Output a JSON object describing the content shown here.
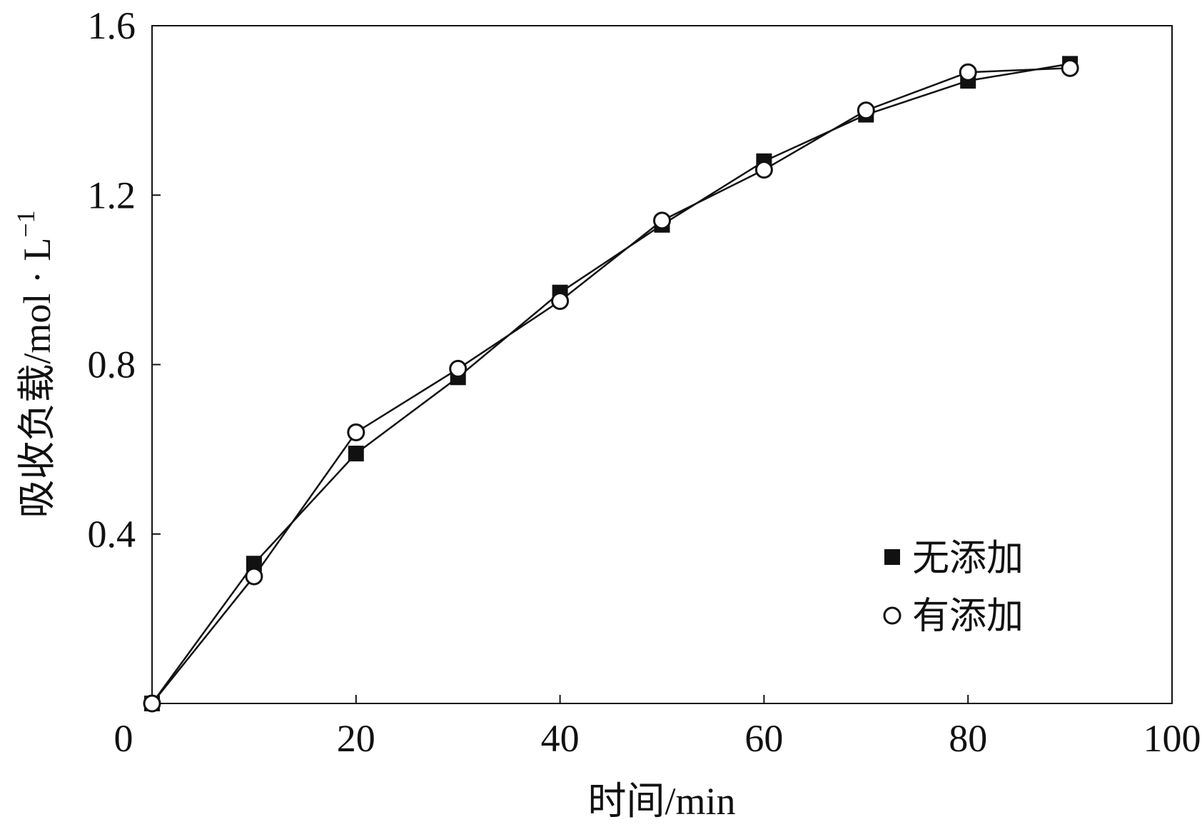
{
  "chart_data": {
    "type": "line",
    "title": "",
    "xlabel": "时间/min",
    "ylabel": "吸收负载/mol · L",
    "ylabel_sup": "−1",
    "xlim": [
      0,
      100
    ],
    "ylim": [
      0,
      1.6
    ],
    "xticks": [
      0,
      20,
      40,
      60,
      80,
      100
    ],
    "xtick_labels": [
      "0",
      "20",
      "40",
      "60",
      "80",
      "100"
    ],
    "yticks": [
      0.4,
      0.8,
      1.2,
      1.6
    ],
    "ytick_labels": [
      "0.4",
      "0.8",
      "1.2",
      "1.6"
    ],
    "grid": false,
    "legend_position": "bottom-right",
    "series": [
      {
        "name": "无添加",
        "marker": "filled-square",
        "color": "#111111",
        "x": [
          0,
          10,
          20,
          30,
          40,
          50,
          60,
          70,
          80,
          90
        ],
        "y": [
          0.0,
          0.33,
          0.59,
          0.77,
          0.97,
          1.13,
          1.28,
          1.39,
          1.47,
          1.51
        ]
      },
      {
        "name": "有添加",
        "marker": "open-circle",
        "color": "#111111",
        "x": [
          0,
          10,
          20,
          30,
          40,
          50,
          60,
          70,
          80,
          90
        ],
        "y": [
          0.0,
          0.3,
          0.64,
          0.79,
          0.95,
          1.14,
          1.26,
          1.4,
          1.49,
          1.5
        ]
      }
    ]
  }
}
